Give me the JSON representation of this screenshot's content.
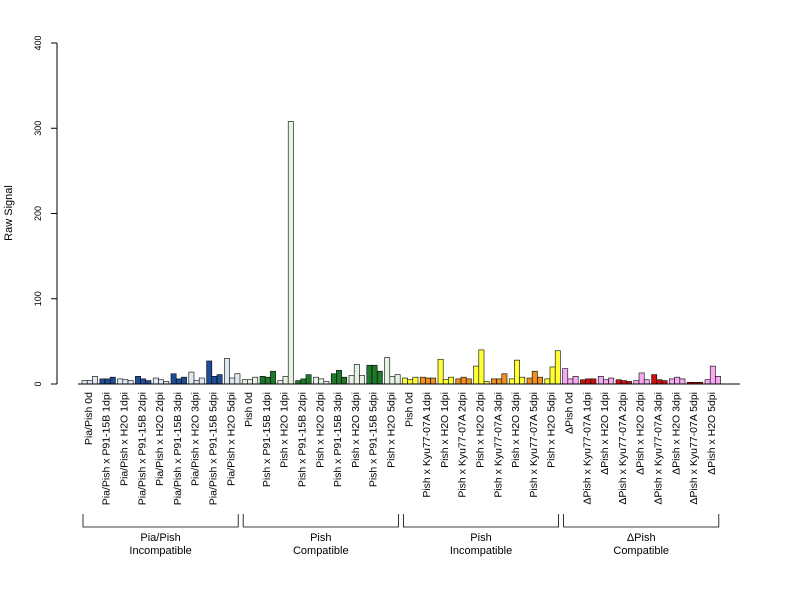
{
  "chart_data": {
    "type": "bar",
    "ylabel": "Raw Signal",
    "ylim": [
      0,
      400
    ],
    "yticks": [
      0,
      100,
      200,
      300,
      400
    ],
    "grid": false,
    "legend": "none",
    "categories": [
      "Pia/Pish 0d",
      "Pia/Pish x P91-15B 1dpi",
      "Pia/Pish x H2O 1dpi",
      "Pia/Pish x P91-15B 2dpi",
      "Pia/Pish x H2O 2dpi",
      "Pia/Pish x P91-15B 3dpi",
      "Pia/Pish x H2O 3dpi",
      "Pia/Pish x P91-15B 5dpi",
      "Pia/Pish x H2O 5dpi",
      "Pish 0d",
      "Pish x P91-15B 1dpi",
      "Pish x H2O 1dpi",
      "Pish x P91-15B 2dpi",
      "Pish x H2O 2dpi",
      "Pish x P91-15B 3dpi",
      "Pish x H2O 3dpi",
      "Pish x P91-15B 5dpi",
      "Pish x H2O 5dpi",
      "Pish 0d",
      "Pish x Kyu77-07A 1dpi",
      "Pish x H2O 1dpi",
      "Pish x Kyu77-07A 2dpi",
      "Pish x H2O 2dpi",
      "Pish x Kyu77-07A 3dpi",
      "Pish x H2O 3dpi",
      "Pish x Kyu77-07A 5dpi",
      "Pish x H2O 5dpi",
      "ΔPish 0d",
      "ΔPish x Kyu77-07A 1dpi",
      "ΔPish x H2O 1dpi",
      "ΔPish x Kyu77-07A 2dpi",
      "ΔPish x H2O 2dpi",
      "ΔPish x Kyu77-07A 3dpi",
      "ΔPish x H2O 3dpi",
      "ΔPish x Kyu77-07A 5dpi",
      "ΔPish x H2O 5dpi"
    ],
    "colors": [
      "#dfe8f3",
      "#1f4e96",
      "#dfe8f3",
      "#1f4e96",
      "#dfe8f3",
      "#1f4e96",
      "#dfe8f3",
      "#1f4e96",
      "#dfe8f3",
      "#e6f2e3",
      "#1e7a2a",
      "#e6f2e3",
      "#1e7a2a",
      "#e6f2e3",
      "#1e7a2a",
      "#e6f2e3",
      "#1e7a2a",
      "#e6f2e3",
      "#ffff33",
      "#f0901e",
      "#ffff33",
      "#f0901e",
      "#ffff33",
      "#f0901e",
      "#ffff33",
      "#f0901e",
      "#ffff33",
      "#f7aaf2",
      "#cc1111",
      "#f7aaf2",
      "#cc1111",
      "#f7aaf2",
      "#cc1111",
      "#f7aaf2",
      "#cc1111",
      "#f7aaf2"
    ],
    "values": [
      [
        4,
        4,
        9
      ],
      [
        6,
        6,
        8
      ],
      [
        6,
        5,
        4
      ],
      [
        9,
        6,
        4
      ],
      [
        7,
        5,
        3
      ],
      [
        12,
        6,
        8
      ],
      [
        14,
        4,
        7
      ],
      [
        27,
        9,
        11
      ],
      [
        30,
        7,
        12
      ],
      [
        5,
        5,
        8
      ],
      [
        9,
        8,
        15
      ],
      [
        4,
        9,
        308
      ],
      [
        4,
        6,
        11
      ],
      [
        8,
        6,
        3
      ],
      [
        12,
        16,
        8
      ],
      [
        10,
        23,
        10
      ],
      [
        22,
        22,
        15
      ],
      [
        31,
        9,
        11
      ],
      [
        7,
        5,
        8
      ],
      [
        8,
        7,
        7
      ],
      [
        29,
        5,
        8
      ],
      [
        6,
        8,
        6
      ],
      [
        21,
        40,
        3
      ],
      [
        6,
        6,
        12
      ],
      [
        6,
        28,
        8
      ],
      [
        7,
        15,
        8
      ],
      [
        6,
        20,
        39
      ],
      [
        18,
        6,
        9
      ],
      [
        5,
        6,
        6
      ],
      [
        9,
        5,
        7
      ],
      [
        5,
        4,
        3
      ],
      [
        4,
        13,
        5
      ],
      [
        11,
        5,
        4
      ],
      [
        6,
        8,
        6
      ],
      [
        2,
        2,
        2
      ],
      [
        5,
        21,
        9
      ]
    ],
    "groups": [
      {
        "name": "Pia/Pish",
        "subtitle": "Incompatible",
        "from": 0,
        "to": 8
      },
      {
        "name": "Pish",
        "subtitle": "Compatible",
        "from": 9,
        "to": 17
      },
      {
        "name": "Pish",
        "subtitle": "Incompatible",
        "from": 18,
        "to": 26
      },
      {
        "name": "ΔPish",
        "subtitle": "Compatible",
        "from": 27,
        "to": 35
      }
    ]
  }
}
